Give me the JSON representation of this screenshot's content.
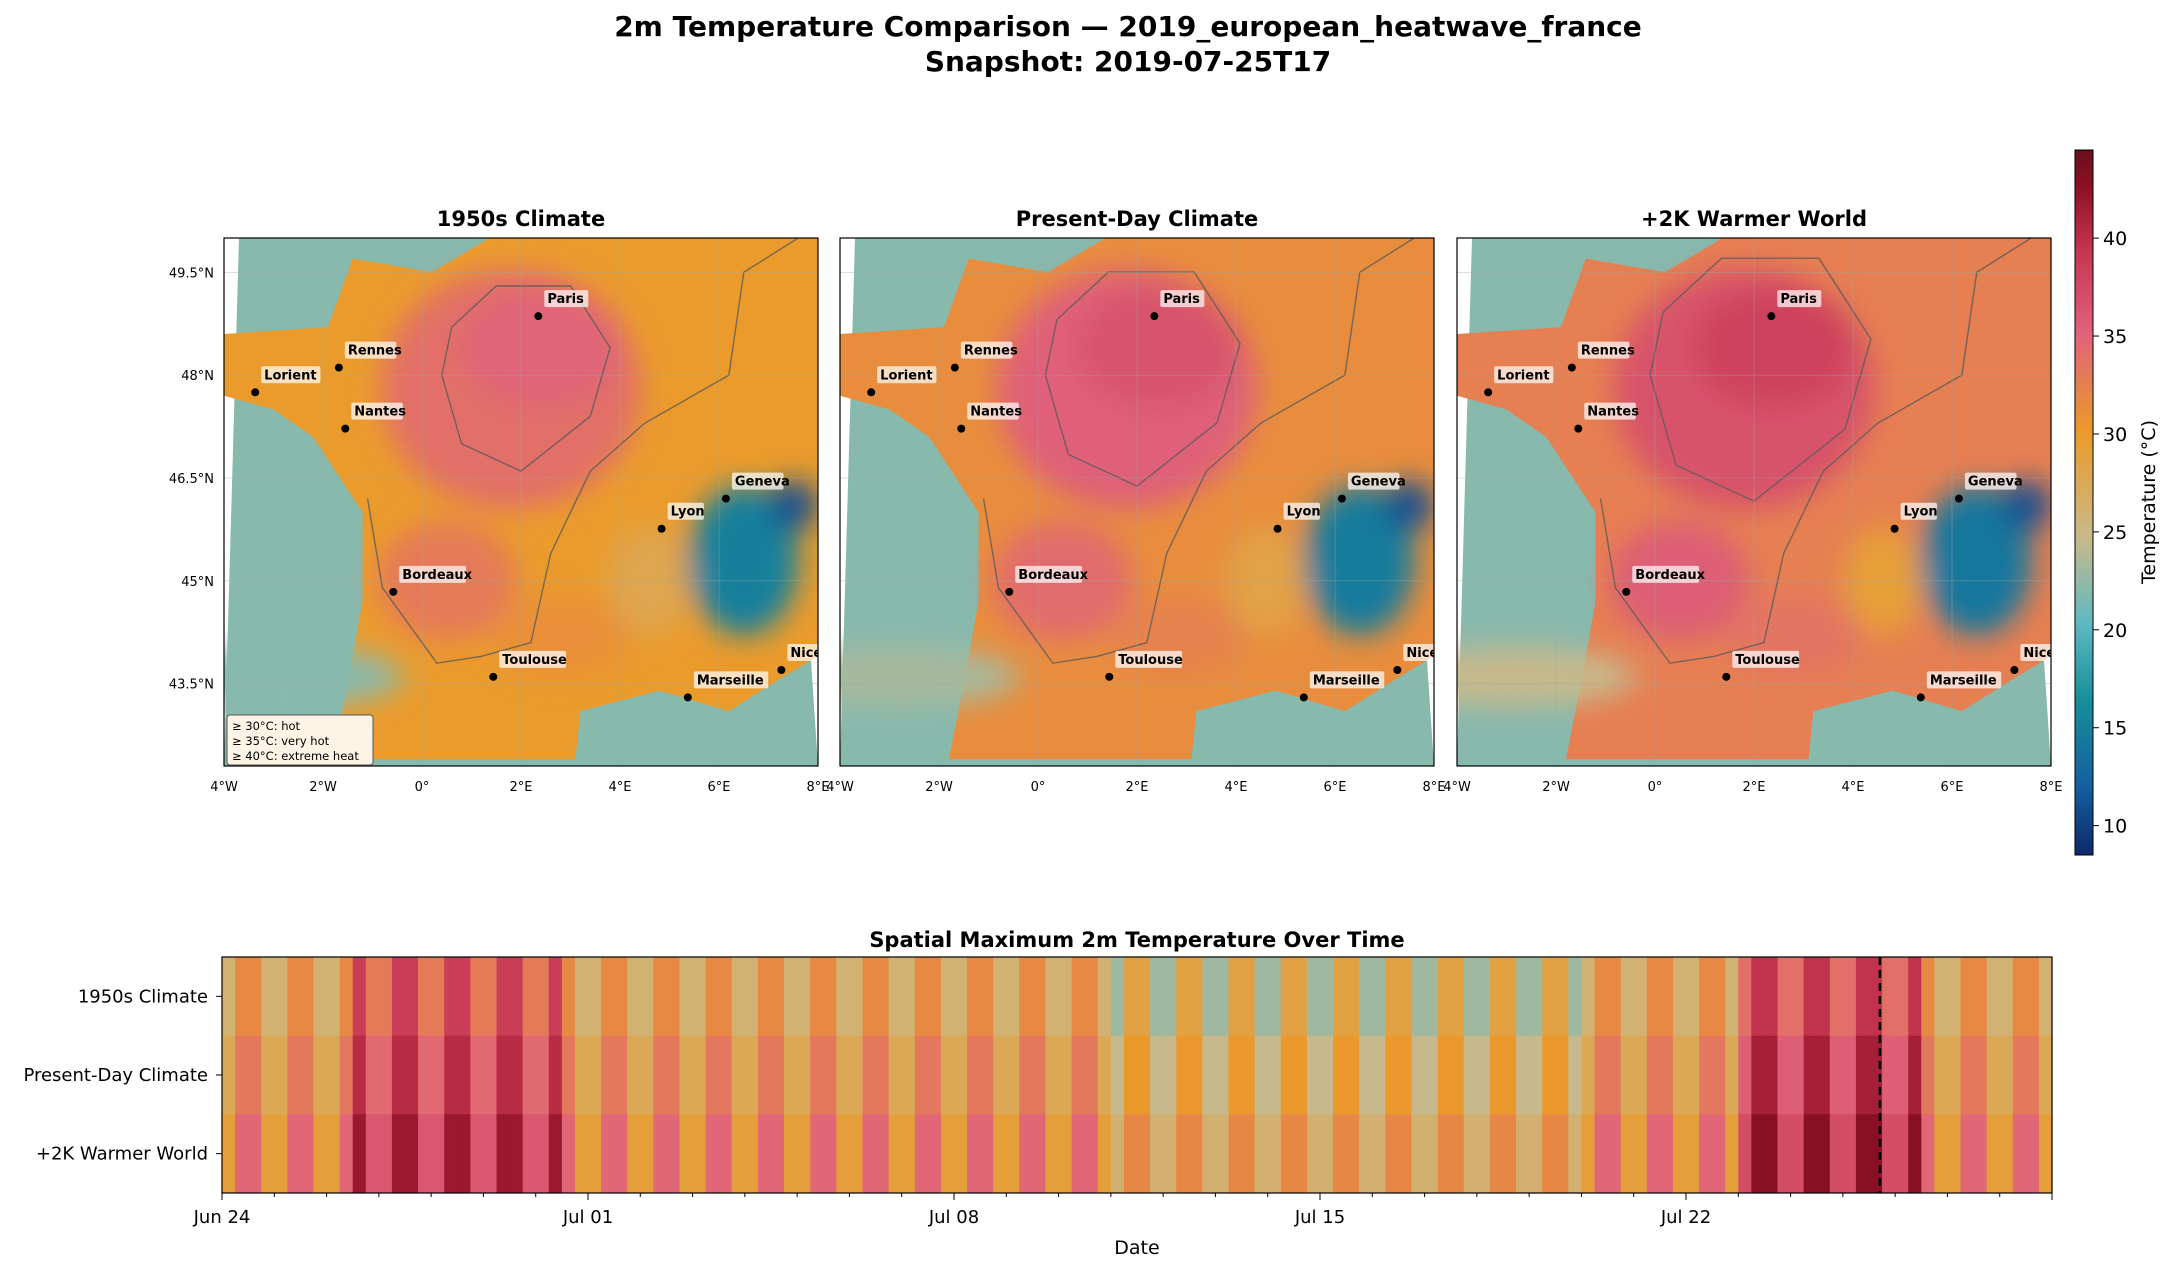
{
  "figure": {
    "title_line1": "2m Temperature Comparison — 2019_european_heatwave_france",
    "title_line2": "Snapshot: 2019-07-25T17"
  },
  "chart_data": [
    {
      "type": "heatmap",
      "panel": "map",
      "title": "1950s Climate",
      "xlim": [
        -4,
        8
      ],
      "ylim": [
        42.3,
        50
      ],
      "x_ticks": [
        "4°W",
        "2°W",
        "0°",
        "2°E",
        "4°E",
        "6°E",
        "8°E"
      ],
      "y_ticks": [
        "43.5°N",
        "45°N",
        "46.5°N",
        "48°N",
        "49.5°N"
      ],
      "contour_levels": [
        30,
        35,
        40
      ],
      "cities": [
        {
          "name": "Paris",
          "lon": 2.35,
          "lat": 48.86
        },
        {
          "name": "Rennes",
          "lon": -1.68,
          "lat": 48.11
        },
        {
          "name": "Lorient",
          "lon": -3.37,
          "lat": 47.75
        },
        {
          "name": "Nantes",
          "lon": -1.55,
          "lat": 47.22
        },
        {
          "name": "Geneva",
          "lon": 6.14,
          "lat": 46.2
        },
        {
          "name": "Lyon",
          "lon": 4.84,
          "lat": 45.76
        },
        {
          "name": "Bordeaux",
          "lon": -0.58,
          "lat": 44.84
        },
        {
          "name": "Nice",
          "lon": 7.26,
          "lat": 43.7
        },
        {
          "name": "Toulouse",
          "lon": 1.44,
          "lat": 43.6
        },
        {
          "name": "Marseille",
          "lon": 5.37,
          "lat": 43.3
        }
      ],
      "legend_box": [
        "≥ 30°C: hot",
        "≥ 35°C: very hot",
        "≥ 40°C: extreme heat"
      ]
    },
    {
      "type": "heatmap",
      "panel": "map",
      "title": "Present-Day Climate",
      "xlim": [
        -4,
        8
      ],
      "ylim": [
        42.3,
        50
      ],
      "x_ticks": [
        "4°W",
        "2°W",
        "0°",
        "2°E",
        "4°E",
        "6°E",
        "8°E"
      ],
      "contour_levels": [
        30,
        35,
        40
      ]
    },
    {
      "type": "heatmap",
      "panel": "map",
      "title": "+2K Warmer World",
      "xlim": [
        -4,
        8
      ],
      "ylim": [
        42.3,
        50
      ],
      "x_ticks": [
        "4°W",
        "2°W",
        "0°",
        "2°E",
        "4°E",
        "6°E",
        "8°E"
      ],
      "contour_levels": [
        30,
        35,
        40
      ]
    },
    {
      "type": "heatmap",
      "panel": "timeline",
      "title": "Spatial Maximum 2m Temperature Over Time",
      "xlabel": "Date",
      "x_ticks": [
        "Jun 24",
        "Jul 01",
        "Jul 08",
        "Jul 15",
        "Jul 22"
      ],
      "rows": [
        "1950s Climate",
        "Present-Day Climate",
        "+2K Warmer World"
      ],
      "date_range": [
        "2019-06-24",
        "2019-07-29"
      ],
      "snapshot_marker": "2019-07-25T17"
    }
  ],
  "colorbar": {
    "label": "Temperature (°C)",
    "range": [
      8.5,
      44.5
    ],
    "ticks": [
      "10",
      "15",
      "20",
      "25",
      "30",
      "35",
      "40"
    ],
    "colors": [
      "#0d2a6b",
      "#1560a0",
      "#178f99",
      "#5fb9c2",
      "#c9b98a",
      "#eb9a2a",
      "#e0637a",
      "#c5344f",
      "#8b1023",
      "#6a0f1c"
    ]
  }
}
